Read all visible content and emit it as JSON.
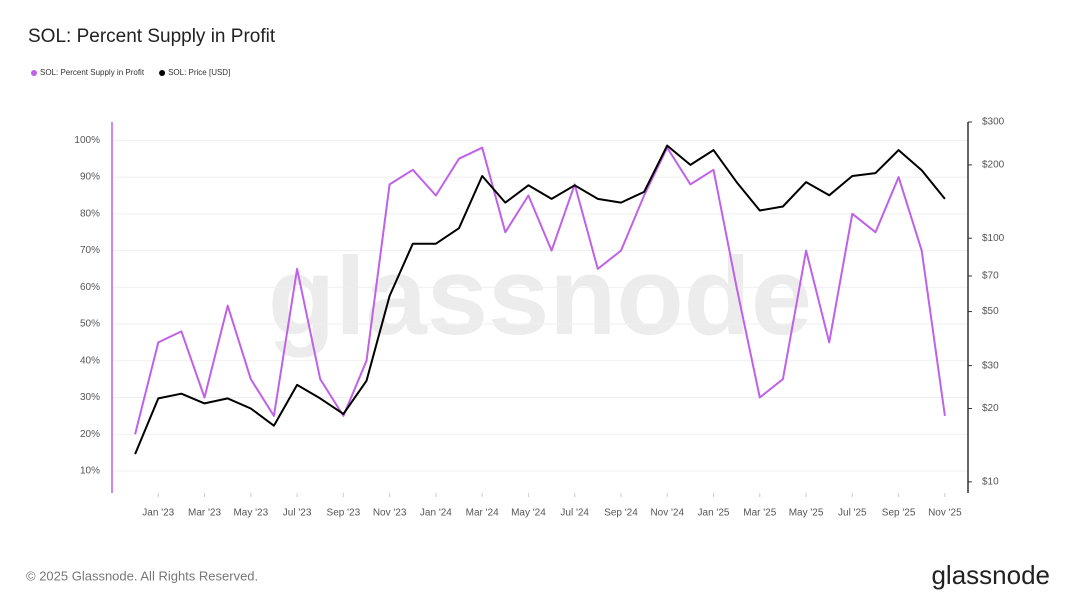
{
  "chart_data": {
    "type": "line",
    "title": "SOL: Percent Supply in Profit",
    "footer": "© 2025 Glassnode. All Rights Reserved.",
    "brand": "glassnode",
    "x": [
      "2022-12",
      "2023-01",
      "2023-02",
      "2023-03",
      "2023-04",
      "2023-05",
      "2023-06",
      "2023-07",
      "2023-08",
      "2023-09",
      "2023-10",
      "2023-11",
      "2023-12",
      "2024-01",
      "2024-02",
      "2024-03",
      "2024-04",
      "2024-05",
      "2024-06",
      "2024-07",
      "2024-08",
      "2024-09",
      "2024-10",
      "2024-11",
      "2024-12",
      "2025-01",
      "2025-02",
      "2025-03",
      "2025-04",
      "2025-05",
      "2025-06",
      "2025-07",
      "2025-08",
      "2025-09",
      "2025-10",
      "2025-11"
    ],
    "xlim": [
      "2022-11",
      "2025-12"
    ],
    "xticks": [
      {
        "value": "2023-01",
        "label": "Jan '23"
      },
      {
        "value": "2023-03",
        "label": "Mar '23"
      },
      {
        "value": "2023-05",
        "label": "May '23"
      },
      {
        "value": "2023-07",
        "label": "Jul '23"
      },
      {
        "value": "2023-09",
        "label": "Sep '23"
      },
      {
        "value": "2023-11",
        "label": "Nov '23"
      },
      {
        "value": "2024-01",
        "label": "Jan '24"
      },
      {
        "value": "2024-03",
        "label": "Mar '24"
      },
      {
        "value": "2024-05",
        "label": "May '24"
      },
      {
        "value": "2024-07",
        "label": "Jul '24"
      },
      {
        "value": "2024-09",
        "label": "Sep '24"
      },
      {
        "value": "2024-11",
        "label": "Nov '24"
      },
      {
        "value": "2025-01",
        "label": "Jan '25"
      },
      {
        "value": "2025-03",
        "label": "Mar '25"
      },
      {
        "value": "2025-05",
        "label": "May '25"
      },
      {
        "value": "2025-07",
        "label": "Jul '25"
      },
      {
        "value": "2025-09",
        "label": "Sep '25"
      },
      {
        "value": "2025-11",
        "label": "Nov '25"
      }
    ],
    "ylim": [
      4,
      105
    ],
    "yticks": [
      {
        "value": 10,
        "label": "10%"
      },
      {
        "value": 20,
        "label": "20%"
      },
      {
        "value": 30,
        "label": "30%"
      },
      {
        "value": 40,
        "label": "40%"
      },
      {
        "value": 50,
        "label": "50%"
      },
      {
        "value": 60,
        "label": "60%"
      },
      {
        "value": 70,
        "label": "70%"
      },
      {
        "value": 80,
        "label": "80%"
      },
      {
        "value": 90,
        "label": "90%"
      },
      {
        "value": 100,
        "label": "100%"
      }
    ],
    "y2lim": [
      9,
      300
    ],
    "y2scale": "log",
    "y2ticks": [
      {
        "value": 10,
        "label": "$10"
      },
      {
        "value": 20,
        "label": "$20"
      },
      {
        "value": 30,
        "label": "$30"
      },
      {
        "value": 50,
        "label": "$50"
      },
      {
        "value": 70,
        "label": "$70"
      },
      {
        "value": 100,
        "label": "$100"
      },
      {
        "value": 200,
        "label": "$200"
      },
      {
        "value": 300,
        "label": "$300"
      }
    ],
    "grid": true,
    "series": [
      {
        "name": "SOL: Percent Supply in Profit",
        "color": "#c061e8",
        "values": [
          20,
          45,
          48,
          30,
          55,
          35,
          25,
          65,
          35,
          25,
          40,
          88,
          92,
          85,
          95,
          98,
          75,
          85,
          70,
          88,
          65,
          70,
          85,
          98,
          88,
          92,
          60,
          30,
          35,
          70,
          45,
          80,
          75,
          90,
          70,
          25
        ]
      },
      {
        "name": "SOL: Price [USD]",
        "color": "#000000",
        "axis": "y2",
        "values": [
          13,
          22,
          23,
          21,
          22,
          20,
          17,
          25,
          22,
          19,
          26,
          58,
          95,
          95,
          110,
          180,
          140,
          165,
          145,
          165,
          145,
          140,
          155,
          240,
          200,
          230,
          170,
          130,
          135,
          170,
          150,
          180,
          185,
          230,
          190,
          145
        ]
      }
    ]
  }
}
